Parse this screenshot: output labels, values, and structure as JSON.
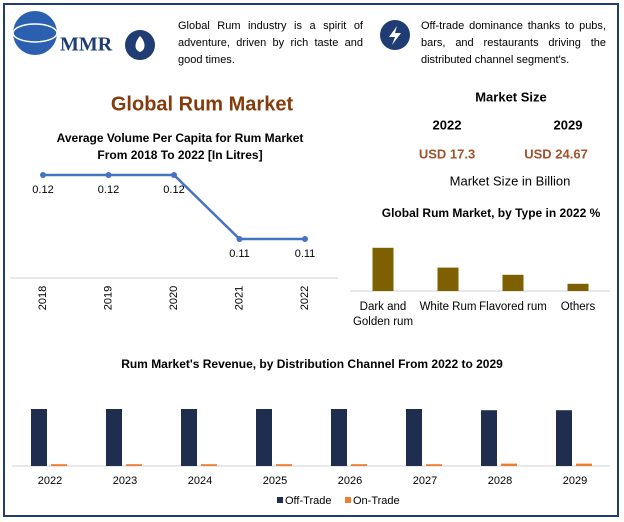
{
  "logo": "MMR",
  "notes": [
    "Global Rum industry is a spirit of adventure, driven by rich taste and good times.",
    "Off-trade dominance thanks to pubs, bars, and restaurants driving the distributed channel segment's."
  ],
  "title": "Global Rum Market",
  "market_size": {
    "title": "Market Size",
    "years": [
      "2022",
      "2029"
    ],
    "values": [
      "USD 17.3",
      "USD 24.67"
    ],
    "caption": "Market Size in Billion"
  },
  "chart_data": [
    {
      "type": "line",
      "title": "Average Volume Per Capita for Rum Market From 2018 To 2022 [In Litres]",
      "categories": [
        "2018",
        "2019",
        "2020",
        "2021",
        "2022"
      ],
      "values": [
        0.12,
        0.12,
        0.12,
        0.11,
        0.11
      ],
      "color": "#4472c4"
    },
    {
      "type": "bar",
      "title": "Global Rum Market, by Type in 2022 %",
      "categories": [
        "Dark and Golden rum",
        "White Rum",
        "Flavored rum",
        "Others"
      ],
      "values": [
        48,
        26,
        18,
        8
      ],
      "color": "#7f6000"
    },
    {
      "type": "grouped-bar",
      "title": "Rum Market's Revenue, by Distribution Channel From 2022 to 2029",
      "categories": [
        "2022",
        "2023",
        "2024",
        "2025",
        "2026",
        "2027",
        "2028",
        "2029"
      ],
      "series": [
        {
          "name": "Off-Trade",
          "color": "#1f2d4e",
          "values": [
            95,
            95,
            95,
            95,
            95,
            95,
            93,
            93
          ]
        },
        {
          "name": "On-Trade",
          "color": "#ed7d31",
          "values": [
            3,
            3,
            3,
            3,
            3,
            3,
            4,
            4
          ]
        }
      ]
    }
  ]
}
